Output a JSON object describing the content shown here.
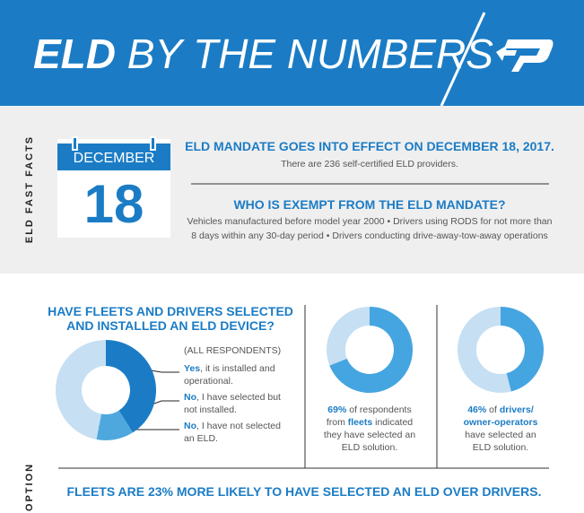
{
  "header": {
    "title_bold": "ELD",
    "title_rest": "BY THE NUMBERS"
  },
  "fast_facts": {
    "side_label": "ELD FAST FACTS",
    "calendar": {
      "month": "DECEMBER",
      "day": "18"
    },
    "items": [
      {
        "heading": "ELD MANDATE GOES INTO EFFECT ON DECEMBER 18, 2017.",
        "body": [
          "There are 236 self-certified ELD providers."
        ]
      },
      {
        "heading": "WHO IS EXEMPT FROM THE ELD MANDATE?",
        "body": [
          "Vehicles manufactured before model year 2000 • Drivers using RODS for not more than",
          "8 days within any 30-day period • Drivers conducting drive-away-tow-away operations"
        ]
      }
    ]
  },
  "adoption": {
    "side_label": "ADOPTION",
    "question": [
      "HAVE FLEETS AND DRIVERS SELECTED",
      "AND INSTALLED AN ELD DEVICE?"
    ],
    "respondents": "(ALL RESPONDENTS)",
    "segments": [
      {
        "value": 41,
        "color": "#1b7cc5",
        "lines": [
          [
            {
              "text": "Yes",
              "bold": true
            },
            {
              "text": ", it is installed and"
            }
          ],
          [
            {
              "text": "operational."
            }
          ]
        ]
      },
      {
        "value": 12,
        "color": "#4ea8de",
        "lines": [
          [
            {
              "text": "No",
              "bold": true
            },
            {
              "text": ", I have selected but"
            }
          ],
          [
            {
              "text": "not installed."
            }
          ]
        ]
      },
      {
        "value": 47,
        "color": "#c6dff3",
        "lines": [
          [
            {
              "text": "No",
              "bold": true
            },
            {
              "text": ", I have not selected"
            }
          ],
          [
            {
              "text": "an ELD."
            }
          ]
        ]
      }
    ],
    "comparisons": [
      {
        "value": 69,
        "color": "#45a5e0",
        "track_color": "#c6dff3",
        "lines": [
          [
            {
              "text": "69%",
              "bold": true
            },
            {
              "text": " of respondents"
            }
          ],
          [
            {
              "text": "from "
            },
            {
              "text": "fleets",
              "bold": true
            },
            {
              "text": " indicated"
            }
          ],
          [
            {
              "text": "they have selected an"
            }
          ],
          [
            {
              "text": "ELD solution."
            }
          ]
        ]
      },
      {
        "value": 46,
        "color": "#45a5e0",
        "track_color": "#c6dff3",
        "lines": [
          [
            {
              "text": "46%",
              "bold": true
            },
            {
              "text": " of "
            },
            {
              "text": "drivers/",
              "bold": true
            }
          ],
          [
            {
              "text": "owner-operators",
              "bold": true
            }
          ],
          [
            {
              "text": "have selected an"
            }
          ],
          [
            {
              "text": "ELD solution."
            }
          ]
        ]
      }
    ],
    "footer": "FLEETS ARE 23% MORE LIKELY TO HAVE SELECTED AN ELD OVER DRIVERS."
  }
}
